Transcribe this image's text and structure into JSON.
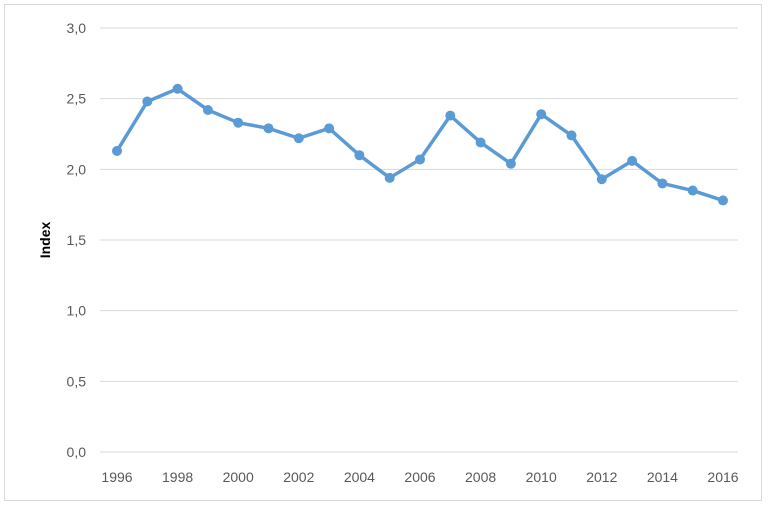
{
  "chart_data": {
    "type": "line",
    "title": "",
    "xlabel": "",
    "ylabel": "Index",
    "x": [
      1996,
      1997,
      1998,
      1999,
      2000,
      2001,
      2002,
      2003,
      2004,
      2005,
      2006,
      2007,
      2008,
      2009,
      2010,
      2011,
      2012,
      2013,
      2014,
      2015,
      2016
    ],
    "series": [
      {
        "values": [
          2.13,
          2.48,
          2.57,
          2.42,
          2.33,
          2.29,
          2.22,
          2.29,
          2.1,
          1.94,
          2.07,
          2.38,
          2.19,
          2.04,
          2.39,
          2.24,
          1.93,
          2.06,
          1.9,
          1.85,
          1.78
        ],
        "color": "#5b9bd5"
      }
    ],
    "x_tick_labels": [
      "1996",
      "1998",
      "2000",
      "2002",
      "2004",
      "2006",
      "2008",
      "2010",
      "2012",
      "2014",
      "2016"
    ],
    "y_ticks": [
      0,
      0.5,
      1.0,
      1.5,
      2.0,
      2.5,
      3.0
    ],
    "y_tick_labels": [
      "0,0",
      "0,5",
      "1,0",
      "1,5",
      "2,0",
      "2,5",
      "3,0"
    ],
    "xlim": [
      1996,
      2016
    ],
    "ylim": [
      0,
      3.0
    ],
    "grid": "horizontal",
    "legend": "none",
    "gridline_color": "#d9d9d9"
  }
}
